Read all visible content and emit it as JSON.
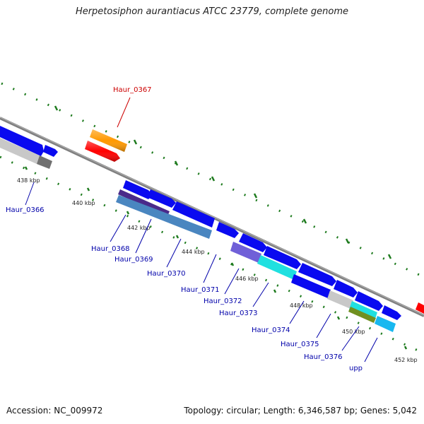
{
  "title": "Herpetosiphon aurantiacus ATCC 23779, complete genome",
  "footer": {
    "accession": "Accession: NC_009972",
    "summary": "Topology: circular; Length: 6,346,587 bp; Genes: 5,042"
  },
  "colors": {
    "backbone": "#808080",
    "tick": "#1e7b1e",
    "label_gene": "#0000aa",
    "label_highlight": "#cc0000",
    "blue": "#0a0af0",
    "orange": "#ff9900",
    "red": "#ff0000",
    "grey": "#c8c8c8",
    "darkgrey": "#707070",
    "purple": "#7060d8",
    "steel": "#4a86c0",
    "cyan": "#20e0e0",
    "sky": "#18b8f0",
    "olive": "#709020"
  },
  "scale_labels": [
    "438 kbp",
    "440 kbp",
    "442 kbp",
    "444 kbp",
    "446 kbp",
    "448 kbp",
    "450 kbp",
    "452 kbp"
  ],
  "gene_labels": [
    "Haur_0366",
    "Haur_0367",
    "Haur_0368",
    "Haur_0369",
    "Haur_0370",
    "Haur_0371",
    "Haur_0372",
    "Haur_0373",
    "Haur_0374",
    "Haur_0375",
    "Haur_0376",
    "upp"
  ]
}
